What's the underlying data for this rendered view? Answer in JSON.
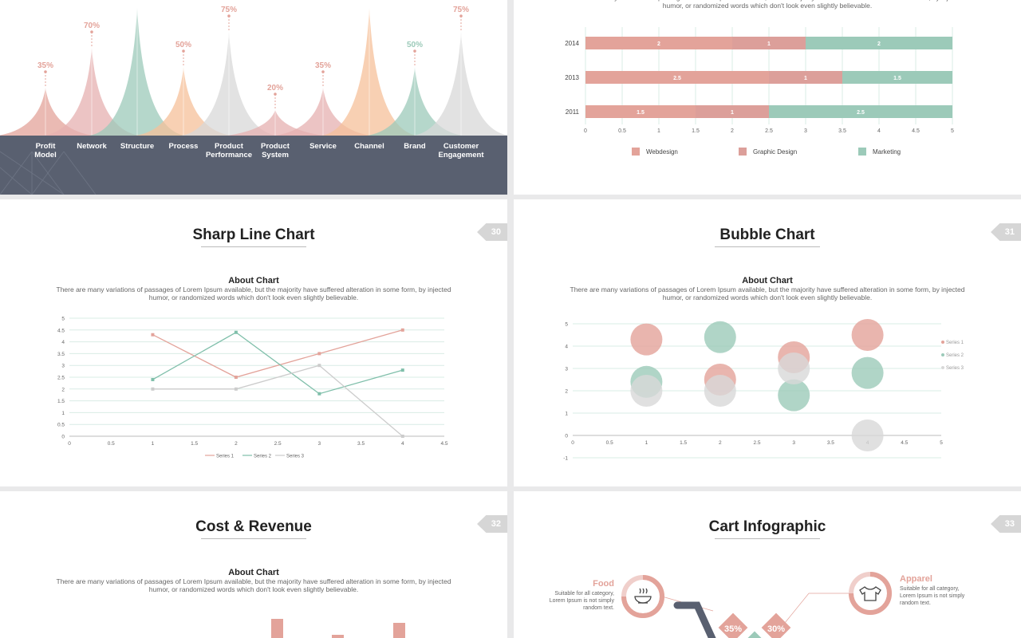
{
  "colors": {
    "salmon": "#e3a39a",
    "pink": "#e6b0b0",
    "teal": "#9ccab9",
    "orange": "#f6c099",
    "grey": "#d8d8d8",
    "dark": "#596070",
    "rose": "#dc9f9a"
  },
  "slides": {
    "peaks": {
      "categories": [
        {
          "label": "Profit Model",
          "value": "35%"
        },
        {
          "label": "Network",
          "value": "70%"
        },
        {
          "label": "Structure",
          "value": ""
        },
        {
          "label": "Process",
          "value": "50%"
        },
        {
          "label": "Product Performance",
          "value": "75%"
        },
        {
          "label": "Product System",
          "value": "20%"
        },
        {
          "label": "Service",
          "value": "35%"
        },
        {
          "label": "Channel",
          "value": ""
        },
        {
          "label": "Brand",
          "value": "50%"
        },
        {
          "label": "Customer Engagement",
          "value": "75%"
        }
      ]
    },
    "stacked": {
      "description": "There are many variations of passages of Lorem Ipsum available, but the majority have suffered alteration in some form, by injected humor, or randomized words which don't look even slightly believable."
    },
    "sharp_line": {
      "title": "Sharp Line Chart",
      "number": "30",
      "about_title": "About Chart",
      "description": "There are many variations of passages of Lorem Ipsum available, but the majority have suffered alteration in some form, by injected humor, or randomized words which don't look even slightly believable."
    },
    "bubble": {
      "title": "Bubble Chart",
      "number": "31",
      "about_title": "About Chart",
      "description": "There are many variations of passages of Lorem Ipsum available, but the majority have suffered alteration in some form, by injected humor, or randomized words which don't look even slightly believable."
    },
    "cost": {
      "title": "Cost & Revenue",
      "number": "32",
      "about_title": "About Chart",
      "description": "There are many variations of passages of Lorem Ipsum available, but the majority have suffered alteration in some form, by injected humor, or randomized words which don't look even slightly believable."
    },
    "cart": {
      "title": "Cart Infographic",
      "number": "33",
      "food_title": "Food",
      "food_text": "Suitable for all category, Lorem Ipsum is not simply random text.",
      "apparel_title": "Apparel",
      "apparel_text": "Suitable for all category, Lorem Ipsum is not simply random text.",
      "pct1": "35%",
      "pct2": "30%"
    }
  },
  "chart_data": [
    {
      "type": "bar",
      "orientation": "horizontal-stacked",
      "categories": [
        "2014",
        "2013",
        "2011"
      ],
      "series": [
        {
          "name": "Webdesign",
          "values": [
            2,
            2.5,
            1.5
          ]
        },
        {
          "name": "Graphic Design",
          "values": [
            1,
            1,
            1
          ]
        },
        {
          "name": "Marketing",
          "values": [
            2,
            1.5,
            2.5
          ]
        }
      ],
      "xlim": [
        0,
        5
      ],
      "xticks": [
        "0",
        "0.5",
        "1",
        "1.5",
        "2",
        "2.5",
        "3",
        "3.5",
        "4",
        "4.5",
        "5"
      ],
      "legend": "bottom",
      "grid": true
    },
    {
      "type": "line",
      "x": [
        1,
        2,
        3,
        4
      ],
      "series": [
        {
          "name": "Series 1",
          "values": [
            4.3,
            2.5,
            3.5,
            4.5
          ]
        },
        {
          "name": "Series 2",
          "values": [
            2.4,
            4.4,
            1.8,
            2.8
          ]
        },
        {
          "name": "Series 3",
          "values": [
            2,
            2,
            3,
            0
          ]
        }
      ],
      "xlim": [
        0,
        4.5
      ],
      "ylim": [
        0,
        5
      ],
      "xticks": [
        "0",
        "0.5",
        "1",
        "1.5",
        "2",
        "2.5",
        "3",
        "3.5",
        "4",
        "4.5"
      ],
      "yticks": [
        "0",
        "0.5",
        "1",
        "1.5",
        "2",
        "2.5",
        "3",
        "3.5",
        "4",
        "4.5",
        "5"
      ],
      "legend": "bottom",
      "grid": true
    },
    {
      "type": "scatter",
      "bubble": true,
      "series": [
        {
          "name": "Series 1",
          "points": [
            [
              1,
              4.3
            ],
            [
              2,
              2.5
            ],
            [
              3,
              3.5
            ],
            [
              4,
              4.5
            ]
          ]
        },
        {
          "name": "Series 2",
          "points": [
            [
              1,
              2.4
            ],
            [
              2,
              4.4
            ],
            [
              3,
              1.8
            ],
            [
              4,
              2.8
            ]
          ]
        },
        {
          "name": "Series 3",
          "points": [
            [
              1,
              2
            ],
            [
              2,
              2
            ],
            [
              3,
              3
            ],
            [
              4,
              0
            ]
          ]
        }
      ],
      "xlim": [
        0,
        5
      ],
      "ylim": [
        -1,
        5
      ],
      "xticks": [
        "0",
        "0.5",
        "1",
        "1.5",
        "2",
        "2.5",
        "3",
        "3.5",
        "4",
        "4.5",
        "5"
      ],
      "yticks": [
        "-1",
        "0",
        "1",
        "2",
        "3",
        "4",
        "5"
      ],
      "legend": "right",
      "grid": true
    }
  ]
}
